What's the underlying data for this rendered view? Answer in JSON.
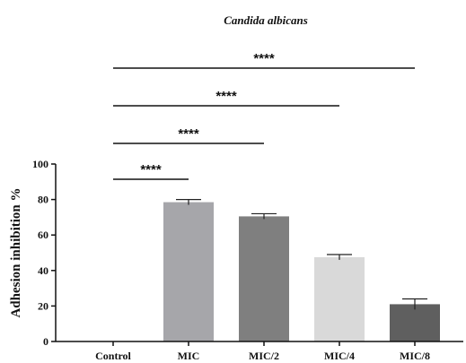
{
  "chart_data": {
    "type": "bar",
    "title": "Candida albicans",
    "ylabel": "Adhesion inhibition %",
    "xlabel": "",
    "ylim": [
      0,
      100
    ],
    "yticks": [
      0,
      20,
      40,
      60,
      80,
      100
    ],
    "categories": [
      "Control",
      "MIC",
      "MIC/2",
      "MIC/4",
      "MIC/8"
    ],
    "values": [
      0,
      78.5,
      70.5,
      47.5,
      21
    ],
    "errors": [
      0,
      1.5,
      1.5,
      1.5,
      3
    ],
    "colors": [
      "#ffffff",
      "#a6a6aa",
      "#7f7f7f",
      "#d9d9d9",
      "#5f5f5f"
    ],
    "significance": [
      {
        "from": "Control",
        "to": "MIC",
        "label": "****"
      },
      {
        "from": "Control",
        "to": "MIC/2",
        "label": "****"
      },
      {
        "from": "Control",
        "to": "MIC/4",
        "label": "****"
      },
      {
        "from": "Control",
        "to": "MIC/8",
        "label": "****"
      }
    ]
  }
}
